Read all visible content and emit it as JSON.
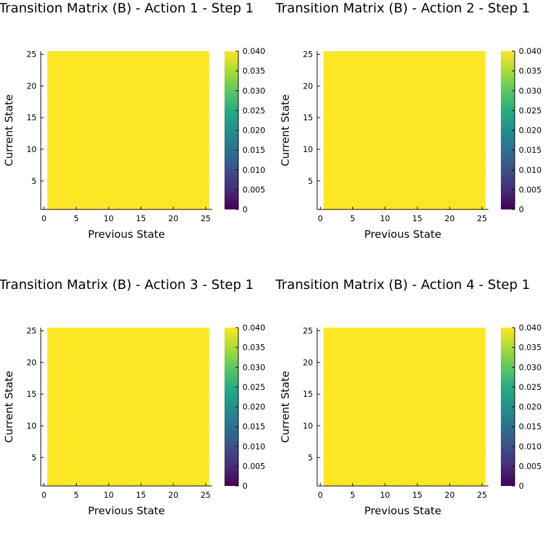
{
  "colormap": {
    "name": "viridis",
    "stops": [
      "#440154",
      "#472c7a",
      "#3b518b",
      "#2c718e",
      "#21908d",
      "#27ad81",
      "#5cc863",
      "#aadc32",
      "#fde725"
    ]
  },
  "chart_data": [
    {
      "type": "heatmap",
      "title": "Transition Matrix (B) - Action 1 - Step 1",
      "xlabel": "Previous State",
      "ylabel": "Current State",
      "x_range": [
        1,
        25
      ],
      "y_range": [
        1,
        25
      ],
      "xlim": [
        -0.5,
        26
      ],
      "ylim": [
        0.5,
        25.5
      ],
      "x_ticks": [
        0,
        5,
        10,
        15,
        20,
        25
      ],
      "y_ticks": [
        5,
        10,
        15,
        20,
        25
      ],
      "uniform_value": 0.04,
      "colorbar": {
        "clim": [
          0,
          0.04
        ],
        "ticks": [
          "0",
          "0.005",
          "0.010",
          "0.015",
          "0.020",
          "0.025",
          "0.030",
          "0.035",
          "0.040"
        ]
      }
    },
    {
      "type": "heatmap",
      "title": "Transition Matrix (B) - Action 2 - Step 1",
      "xlabel": "Previous State",
      "ylabel": "Current State",
      "x_range": [
        1,
        25
      ],
      "y_range": [
        1,
        25
      ],
      "xlim": [
        -0.5,
        26
      ],
      "ylim": [
        0.5,
        25.5
      ],
      "x_ticks": [
        0,
        5,
        10,
        15,
        20,
        25
      ],
      "y_ticks": [
        5,
        10,
        15,
        20,
        25
      ],
      "uniform_value": 0.04,
      "colorbar": {
        "clim": [
          0,
          0.04
        ],
        "ticks": [
          "0",
          "0.005",
          "0.010",
          "0.015",
          "0.020",
          "0.025",
          "0.030",
          "0.035",
          "0.040"
        ]
      }
    },
    {
      "type": "heatmap",
      "title": "Transition Matrix (B) - Action 3 - Step 1",
      "xlabel": "Previous State",
      "ylabel": "Current State",
      "x_range": [
        1,
        25
      ],
      "y_range": [
        1,
        25
      ],
      "xlim": [
        -0.5,
        26
      ],
      "ylim": [
        0.5,
        25.5
      ],
      "x_ticks": [
        0,
        5,
        10,
        15,
        20,
        25
      ],
      "y_ticks": [
        5,
        10,
        15,
        20,
        25
      ],
      "uniform_value": 0.04,
      "colorbar": {
        "clim": [
          0,
          0.04
        ],
        "ticks": [
          "0",
          "0.005",
          "0.010",
          "0.015",
          "0.020",
          "0.025",
          "0.030",
          "0.035",
          "0.040"
        ]
      }
    },
    {
      "type": "heatmap",
      "title": "Transition Matrix (B) - Action 4 - Step 1",
      "xlabel": "Previous State",
      "ylabel": "Current State",
      "x_range": [
        1,
        25
      ],
      "y_range": [
        1,
        25
      ],
      "xlim": [
        -0.5,
        26
      ],
      "ylim": [
        0.5,
        25.5
      ],
      "x_ticks": [
        0,
        5,
        10,
        15,
        20,
        25
      ],
      "y_ticks": [
        5,
        10,
        15,
        20,
        25
      ],
      "uniform_value": 0.04,
      "colorbar": {
        "clim": [
          0,
          0.04
        ],
        "ticks": [
          "0",
          "0.005",
          "0.010",
          "0.015",
          "0.020",
          "0.025",
          "0.030",
          "0.035",
          "0.040"
        ]
      }
    }
  ]
}
